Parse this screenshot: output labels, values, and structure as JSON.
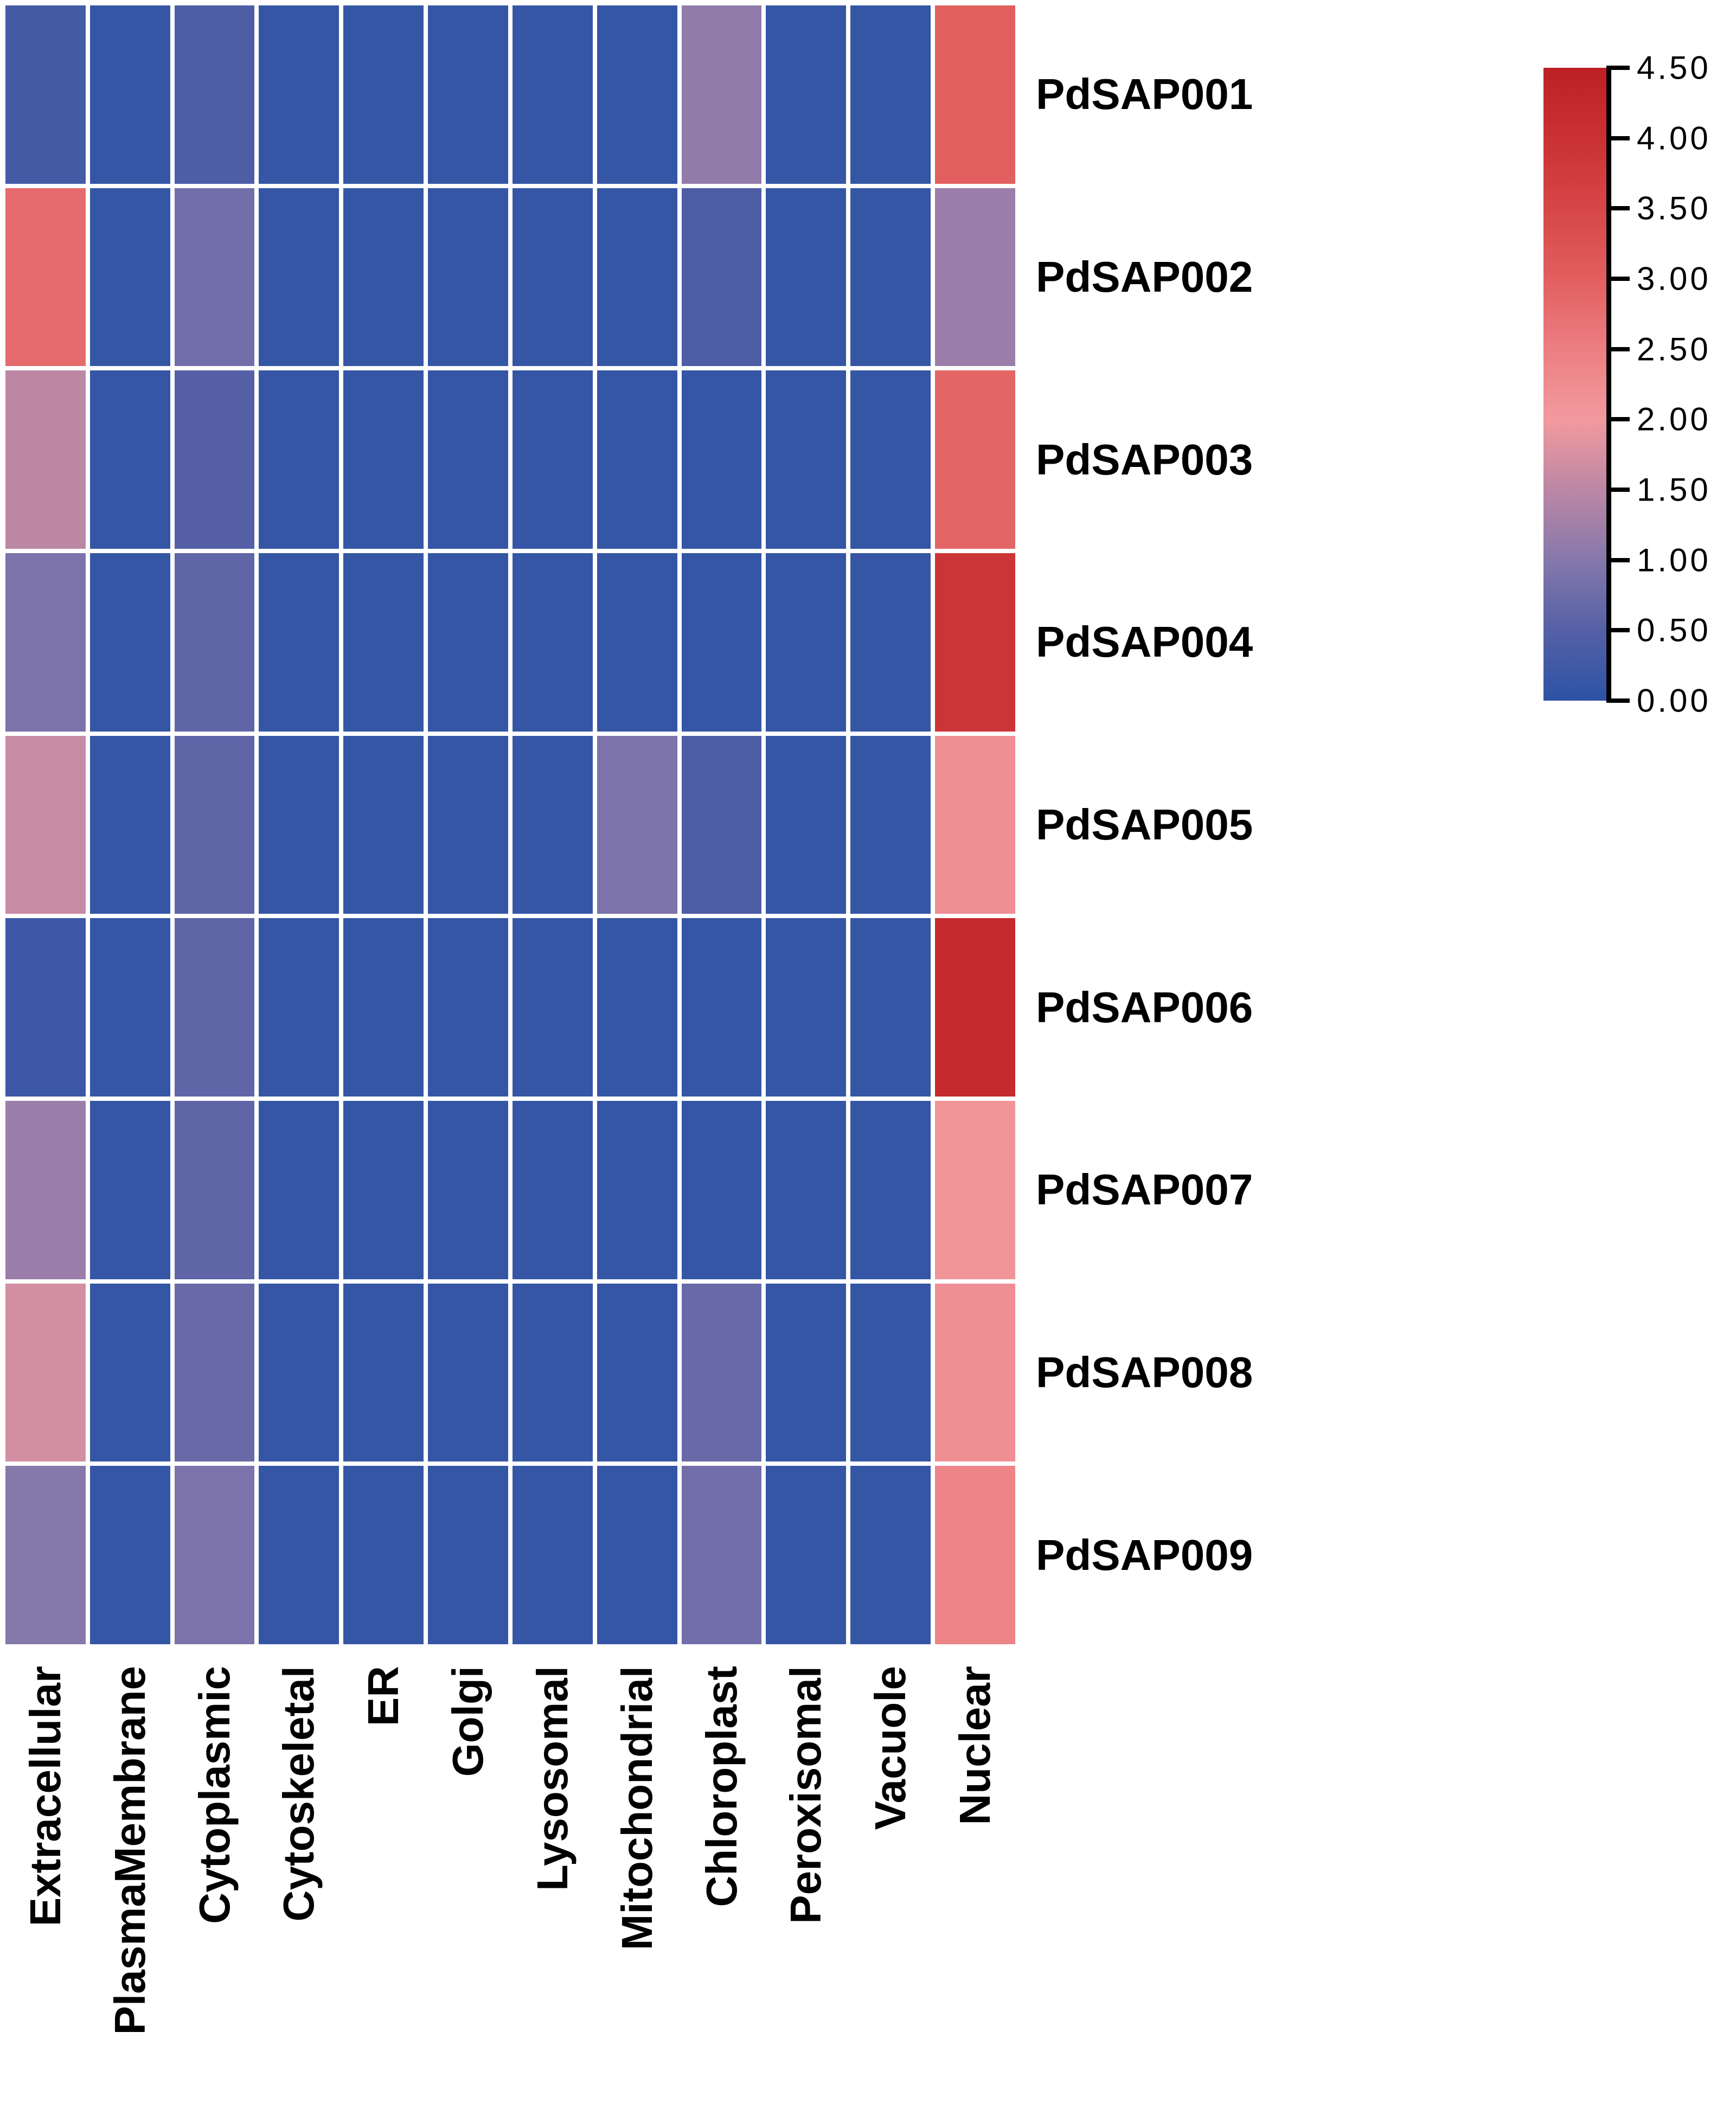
{
  "figure": {
    "background_color": "#ffffff",
    "text_color": "#000000"
  },
  "chart_data": {
    "type": "heatmap",
    "title": "",
    "xlabel": "",
    "ylabel": "",
    "rows": [
      "PdSAP001",
      "PdSAP002",
      "PdSAP003",
      "PdSAP004",
      "PdSAP005",
      "PdSAP006",
      "PdSAP007",
      "PdSAP008",
      "PdSAP009"
    ],
    "columns": [
      "Extracellular",
      "PlasmaMembrane",
      "Cytoplasmic",
      "Cytoskeletal",
      "ER",
      "Golgi",
      "Lysosomal",
      "Mitochondrial",
      "Chloroplast",
      "Peroxisomal",
      "Vacuole",
      "Nuclear"
    ],
    "values": [
      [
        0.3,
        0.1,
        0.4,
        0.1,
        0.1,
        0.1,
        0.1,
        0.1,
        1.1,
        0.1,
        0.1,
        3.0
      ],
      [
        2.8,
        0.1,
        0.8,
        0.1,
        0.1,
        0.1,
        0.1,
        0.1,
        0.4,
        0.1,
        0.1,
        1.2
      ],
      [
        1.5,
        0.1,
        0.5,
        0.1,
        0.1,
        0.1,
        0.1,
        0.1,
        0.1,
        0.1,
        0.1,
        2.9
      ],
      [
        0.9,
        0.1,
        0.6,
        0.1,
        0.1,
        0.1,
        0.1,
        0.1,
        0.1,
        0.1,
        0.1,
        3.9
      ],
      [
        1.6,
        0.1,
        0.6,
        0.1,
        0.1,
        0.1,
        0.1,
        0.9,
        0.4,
        0.1,
        0.1,
        2.2
      ],
      [
        0.2,
        0.1,
        0.6,
        0.1,
        0.1,
        0.1,
        0.1,
        0.1,
        0.1,
        0.1,
        0.1,
        4.2
      ],
      [
        1.2,
        0.1,
        0.6,
        0.1,
        0.1,
        0.1,
        0.1,
        0.1,
        0.1,
        0.1,
        0.1,
        2.1
      ],
      [
        1.7,
        0.1,
        0.7,
        0.1,
        0.1,
        0.1,
        0.1,
        0.1,
        0.7,
        0.1,
        0.1,
        2.2
      ],
      [
        1.0,
        0.1,
        0.9,
        0.1,
        0.1,
        0.1,
        0.1,
        0.1,
        0.8,
        0.1,
        0.1,
        2.4
      ]
    ],
    "grid_line_color": "#ffffff",
    "legend_position": "right",
    "colorbar": {
      "min": 0.0,
      "max": 4.5,
      "tick_labels": [
        "4.50",
        "4.00",
        "3.50",
        "3.00",
        "2.50",
        "2.00",
        "1.50",
        "1.00",
        "0.50",
        "0.00"
      ],
      "stops": [
        {
          "value": 0.0,
          "color": "#2d53a5"
        },
        {
          "value": 0.5,
          "color": "#5560a6"
        },
        {
          "value": 1.0,
          "color": "#8578ab"
        },
        {
          "value": 1.5,
          "color": "#bc87a5"
        },
        {
          "value": 2.0,
          "color": "#f29a9e"
        },
        {
          "value": 2.5,
          "color": "#ec7e82"
        },
        {
          "value": 3.0,
          "color": "#e25f5f"
        },
        {
          "value": 3.5,
          "color": "#d64648"
        },
        {
          "value": 4.0,
          "color": "#ca3134"
        },
        {
          "value": 4.5,
          "color": "#bc2025"
        }
      ]
    }
  }
}
